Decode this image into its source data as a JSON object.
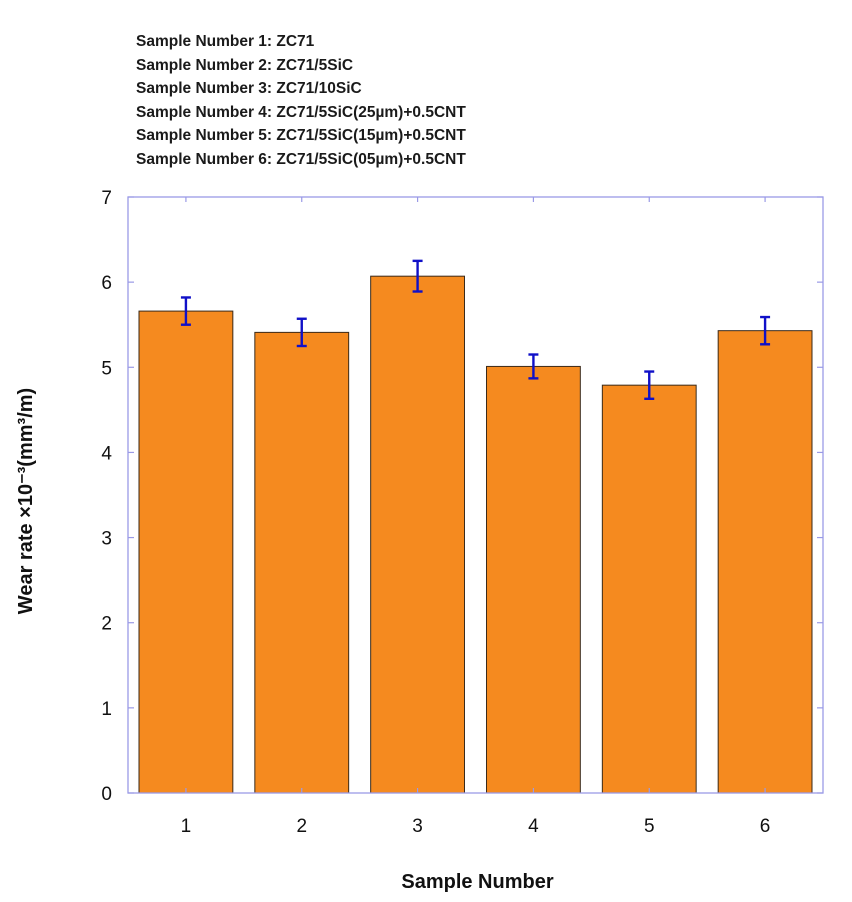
{
  "chart_data": {
    "type": "bar",
    "title": "",
    "xlabel": "Sample Number",
    "ylabel": "Wear rate ×10⁻³(mm³/m)",
    "categories": [
      "1",
      "2",
      "3",
      "4",
      "5",
      "6"
    ],
    "values": [
      5.66,
      5.41,
      6.07,
      5.01,
      4.79,
      5.43
    ],
    "error": [
      0.16,
      0.16,
      0.18,
      0.14,
      0.16,
      0.16
    ],
    "ylim": [
      0,
      7
    ],
    "yticks": [
      "0",
      "1",
      "2",
      "3",
      "4",
      "5",
      "6",
      "7"
    ],
    "grid": false,
    "legend": [
      "Sample Number 1: ZC71",
      "Sample Number 2: ZC71/5SiC",
      "Sample Number 3: ZC71/10SiC",
      "Sample Number 4: ZC71/5SiC(25µm)+0.5CNT",
      "Sample Number 5: ZC71/5SiC(15µm)+0.5CNT",
      "Sample Number 6: ZC71/5SiC(05µm)+0.5CNT"
    ],
    "legend_placement": "top-left",
    "colors": {
      "bar": "#f58a1f",
      "bar_edge": "#3a2a1a",
      "error_bar": "#1010c8",
      "axes": "#9a9ae6"
    }
  }
}
